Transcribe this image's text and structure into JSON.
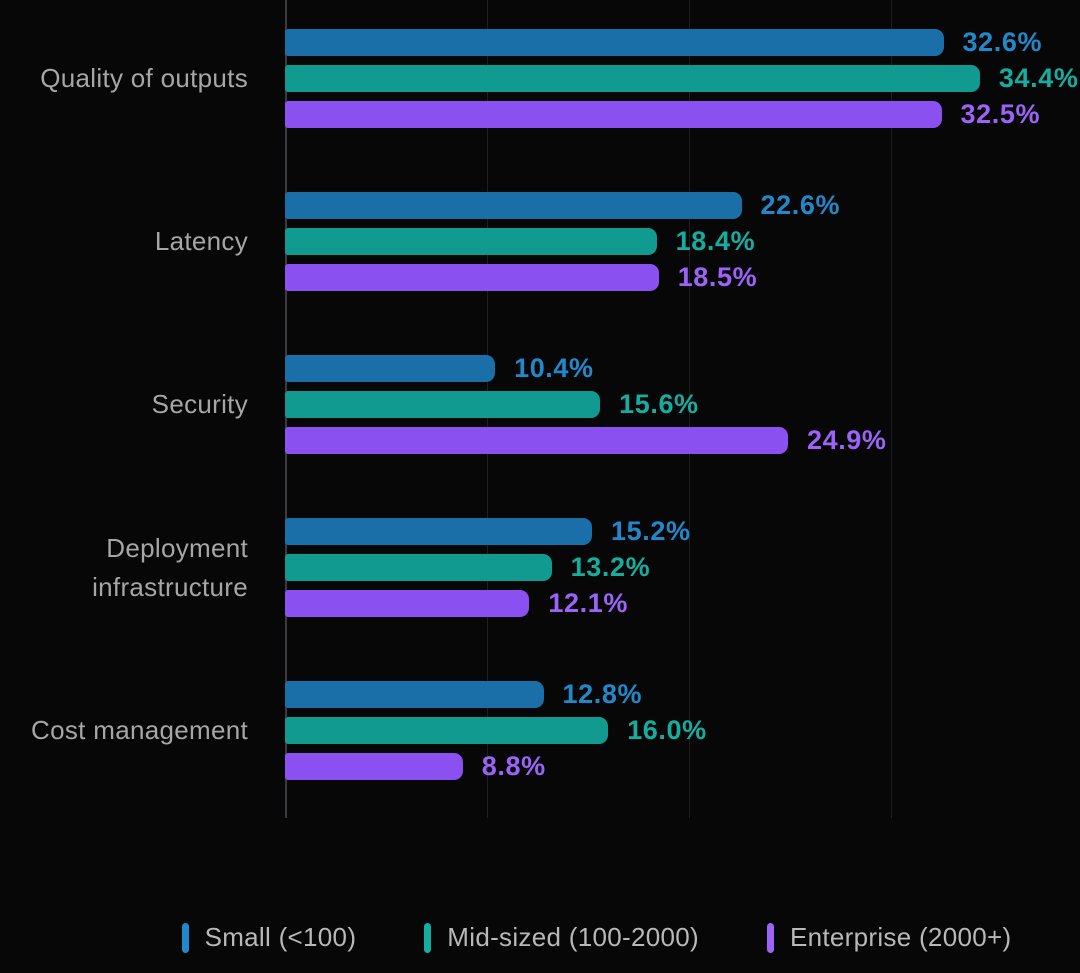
{
  "chart_data": {
    "type": "bar",
    "orientation": "horizontal",
    "title": "",
    "xlabel": "",
    "ylabel": "",
    "value_suffix": "%",
    "xlim": [
      0,
      39.4
    ],
    "gridlines_x_percent": [
      0,
      10,
      20,
      30
    ],
    "grid": "vertical-only",
    "legend_position": "bottom",
    "categories": [
      "Quality of outputs",
      "Latency",
      "Security",
      "Deployment infrastructure",
      "Cost management"
    ],
    "series": [
      {
        "name": "Small (<100)",
        "color": "#1a6fa9",
        "label_color": "#2189cb",
        "values": [
          32.6,
          22.6,
          10.4,
          15.2,
          12.8
        ]
      },
      {
        "name": "Mid-sized (100-2000)",
        "color": "#119a90",
        "label_color": "#15ada0",
        "values": [
          34.4,
          18.4,
          15.6,
          13.2,
          16.0
        ]
      },
      {
        "name": "Enterprise (2000+)",
        "color": "#8a50f0",
        "label_color": "#9b63f8",
        "values": [
          32.5,
          18.5,
          24.9,
          12.1,
          8.8
        ]
      }
    ]
  },
  "colors": {
    "background": "#070708",
    "axis_line": "#3a3a40",
    "gridline": "#1f1f23",
    "category_label": "#a6a6a6",
    "legend_label": "#b8b8b8"
  }
}
